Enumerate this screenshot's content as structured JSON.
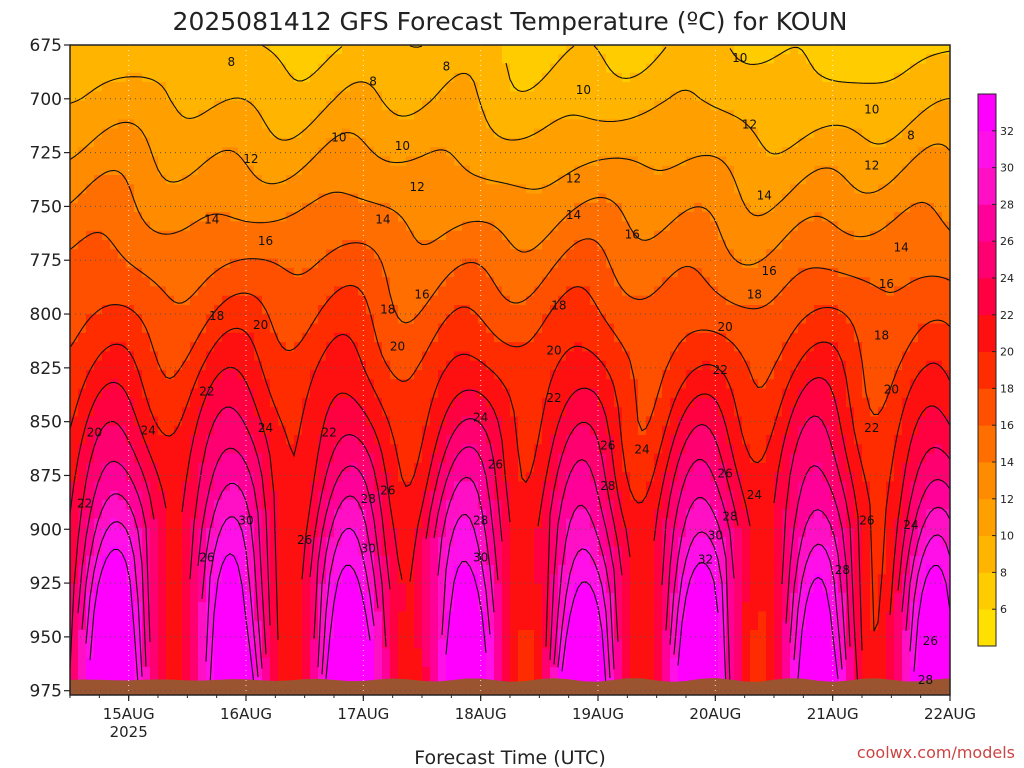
{
  "title": "2025081412 GFS Forecast Temperature (ºC) for KOUN",
  "credit": "coolwx.com/models",
  "chart_data": {
    "type": "heatmap",
    "title": "2025081412 GFS Forecast Temperature (ºC) for KOUN",
    "xlabel": "Forecast Time (UTC)",
    "ylabel": "",
    "x_ticks": [
      {
        "label": "15AUG",
        "sub": "2025",
        "hour": 12
      },
      {
        "label": "16AUG",
        "sub": "",
        "hour": 36
      },
      {
        "label": "17AUG",
        "sub": "",
        "hour": 60
      },
      {
        "label": "18AUG",
        "sub": "",
        "hour": 84
      },
      {
        "label": "19AUG",
        "sub": "",
        "hour": 108
      },
      {
        "label": "20AUG",
        "sub": "",
        "hour": 132
      },
      {
        "label": "21AUG",
        "sub": "",
        "hour": 156
      },
      {
        "label": "22AUG",
        "sub": "",
        "hour": 180
      }
    ],
    "xlim_hours": [
      0,
      180
    ],
    "y_ticks": [
      "675",
      "700",
      "725",
      "750",
      "775",
      "800",
      "825",
      "850",
      "875",
      "900",
      "925",
      "950",
      "975"
    ],
    "ylim_hpa": [
      675,
      977
    ],
    "surface_pressure_hpa": 970,
    "grid": true,
    "colorbar": {
      "labels": [
        "6",
        "8",
        "10",
        "12",
        "14",
        "16",
        "18",
        "20",
        "22",
        "24",
        "26",
        "28",
        "30",
        "32"
      ],
      "levels": [
        4,
        6,
        8,
        10,
        12,
        14,
        16,
        18,
        20,
        22,
        24,
        26,
        28,
        30,
        32,
        34
      ],
      "colors": [
        "#ffe000",
        "#ffcc00",
        "#ffb400",
        "#ffa000",
        "#ff8c00",
        "#ff6e00",
        "#ff5000",
        "#ff2c00",
        "#ff1010",
        "#ff0040",
        "#ff0070",
        "#ff0098",
        "#ff10c4",
        "#ff10e8",
        "#ff00ff"
      ]
    },
    "profile_levels_hpa": [
      675,
      700,
      725,
      750,
      775,
      800,
      825,
      850,
      875,
      900,
      925,
      950,
      975
    ],
    "profile_mean_c": [
      8.5,
      10,
      12,
      14,
      16,
      18,
      20,
      22,
      24,
      26,
      27.5,
      28.5,
      29.5
    ],
    "diurnal_amplitude_c": [
      0.5,
      0.5,
      0.5,
      0.5,
      0.7,
      1,
      1.5,
      2.5,
      3.5,
      4.5,
      6,
      7.5,
      9
    ],
    "trend_c_per_day": -0.15,
    "contour_labels": [
      {
        "t": 8,
        "hour": 33,
        "p": 683
      },
      {
        "t": 8,
        "hour": 62,
        "p": 692
      },
      {
        "t": 8,
        "hour": 77,
        "p": 685
      },
      {
        "t": 8,
        "hour": 172,
        "p": 717
      },
      {
        "t": 10,
        "hour": 55,
        "p": 718
      },
      {
        "t": 10,
        "hour": 68,
        "p": 722
      },
      {
        "t": 10,
        "hour": 105,
        "p": 696
      },
      {
        "t": 10,
        "hour": 137,
        "p": 681
      },
      {
        "t": 10,
        "hour": 164,
        "p": 705
      },
      {
        "t": 12,
        "hour": 37,
        "p": 728
      },
      {
        "t": 12,
        "hour": 71,
        "p": 741
      },
      {
        "t": 12,
        "hour": 103,
        "p": 737
      },
      {
        "t": 12,
        "hour": 139,
        "p": 712
      },
      {
        "t": 12,
        "hour": 164,
        "p": 731
      },
      {
        "t": 14,
        "hour": 29,
        "p": 756
      },
      {
        "t": 14,
        "hour": 64,
        "p": 756
      },
      {
        "t": 14,
        "hour": 103,
        "p": 754
      },
      {
        "t": 14,
        "hour": 142,
        "p": 745
      },
      {
        "t": 14,
        "hour": 170,
        "p": 769
      },
      {
        "t": 16,
        "hour": 40,
        "p": 766
      },
      {
        "t": 16,
        "hour": 72,
        "p": 791
      },
      {
        "t": 16,
        "hour": 115,
        "p": 763
      },
      {
        "t": 16,
        "hour": 143,
        "p": 780
      },
      {
        "t": 16,
        "hour": 167,
        "p": 786
      },
      {
        "t": 18,
        "hour": 30,
        "p": 801
      },
      {
        "t": 18,
        "hour": 65,
        "p": 798
      },
      {
        "t": 18,
        "hour": 100,
        "p": 796
      },
      {
        "t": 18,
        "hour": 140,
        "p": 791
      },
      {
        "t": 18,
        "hour": 166,
        "p": 810
      },
      {
        "t": 20,
        "hour": 39,
        "p": 805
      },
      {
        "t": 20,
        "hour": 67,
        "p": 815
      },
      {
        "t": 20,
        "hour": 99,
        "p": 817
      },
      {
        "t": 20,
        "hour": 134,
        "p": 806
      },
      {
        "t": 20,
        "hour": 168,
        "p": 835
      },
      {
        "t": 22,
        "hour": 3,
        "p": 888
      },
      {
        "t": 22,
        "hour": 28,
        "p": 836
      },
      {
        "t": 22,
        "hour": 53,
        "p": 855
      },
      {
        "t": 22,
        "hour": 99,
        "p": 839
      },
      {
        "t": 22,
        "hour": 133,
        "p": 826
      },
      {
        "t": 22,
        "hour": 164,
        "p": 853
      },
      {
        "t": 20,
        "hour": 5,
        "p": 855
      },
      {
        "t": 24,
        "hour": 16,
        "p": 854
      },
      {
        "t": 24,
        "hour": 40,
        "p": 853
      },
      {
        "t": 24,
        "hour": 84,
        "p": 848
      },
      {
        "t": 24,
        "hour": 117,
        "p": 863
      },
      {
        "t": 24,
        "hour": 140,
        "p": 884
      },
      {
        "t": 24,
        "hour": 172,
        "p": 898
      },
      {
        "t": 26,
        "hour": 28,
        "p": 913
      },
      {
        "t": 26,
        "hour": 48,
        "p": 905
      },
      {
        "t": 26,
        "hour": 65,
        "p": 882
      },
      {
        "t": 26,
        "hour": 87,
        "p": 870
      },
      {
        "t": 26,
        "hour": 110,
        "p": 861
      },
      {
        "t": 26,
        "hour": 134,
        "p": 874
      },
      {
        "t": 26,
        "hour": 163,
        "p": 896
      },
      {
        "t": 26,
        "hour": 176,
        "p": 952
      },
      {
        "t": 28,
        "hour": 61,
        "p": 886
      },
      {
        "t": 28,
        "hour": 84,
        "p": 896
      },
      {
        "t": 28,
        "hour": 110,
        "p": 880
      },
      {
        "t": 28,
        "hour": 135,
        "p": 894
      },
      {
        "t": 28,
        "hour": 158,
        "p": 919
      },
      {
        "t": 28,
        "hour": 175,
        "p": 970
      },
      {
        "t": 30,
        "hour": 36,
        "p": 896
      },
      {
        "t": 30,
        "hour": 61,
        "p": 909
      },
      {
        "t": 30,
        "hour": 84,
        "p": 913
      },
      {
        "t": 30,
        "hour": 132,
        "p": 903
      },
      {
        "t": 32,
        "hour": 130,
        "p": 914
      }
    ]
  }
}
